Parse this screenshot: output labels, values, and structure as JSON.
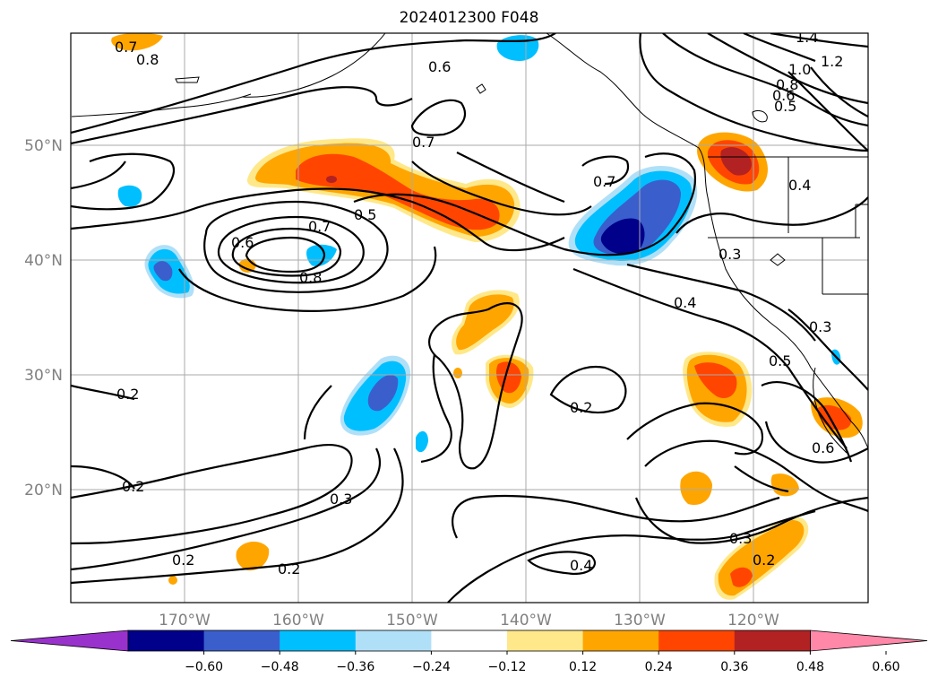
{
  "title": "2024012300 F048",
  "map": {
    "region": "North Pacific / western North America",
    "lon_range": [
      -180,
      -110
    ],
    "lat_range": [
      10,
      60
    ],
    "x_ticks": [
      "170°W",
      "160°W",
      "150°W",
      "140°W",
      "130°W",
      "120°W"
    ],
    "y_ticks": [
      "50°N",
      "40°N",
      "30°N",
      "20°N"
    ],
    "grid": true,
    "contour_labels": [
      "0.7",
      "0.8",
      "0.6",
      "1.4",
      "1.2",
      "1.0",
      "0.8",
      "0.6",
      "0.5",
      "0.7",
      "0.7",
      "0.5",
      "0.7",
      "0.6",
      "0.8",
      "0.4",
      "0.3",
      "0.4",
      "0.3",
      "0.5",
      "0.2",
      "0.2",
      "0.2",
      "0.3",
      "0.6",
      "0.2",
      "0.2",
      "0.4",
      "0.3",
      "0.2"
    ],
    "shading_colors": {
      "strong_negative": "#00008b",
      "mid_negative": "#3a5fcd",
      "weak_negative": "#00bfff",
      "light_negative": "#b0e0f8",
      "light_positive": "#ffe88a",
      "weak_positive": "#ffa500",
      "mid_positive": "#ff4500",
      "strong_positive": "#b22222"
    }
  },
  "colorbar": {
    "labels": [
      "−0.60",
      "−0.48",
      "−0.36",
      "−0.24",
      "−0.12",
      "0.12",
      "0.24",
      "0.36",
      "0.48",
      "0.60"
    ],
    "colors": [
      "#9932cc",
      "#00008b",
      "#3a5fcd",
      "#00bfff",
      "#b0e0f8",
      "#ffffff",
      "#ffe88a",
      "#ffa500",
      "#ff4500",
      "#b22222",
      "#ff87a8"
    ]
  }
}
